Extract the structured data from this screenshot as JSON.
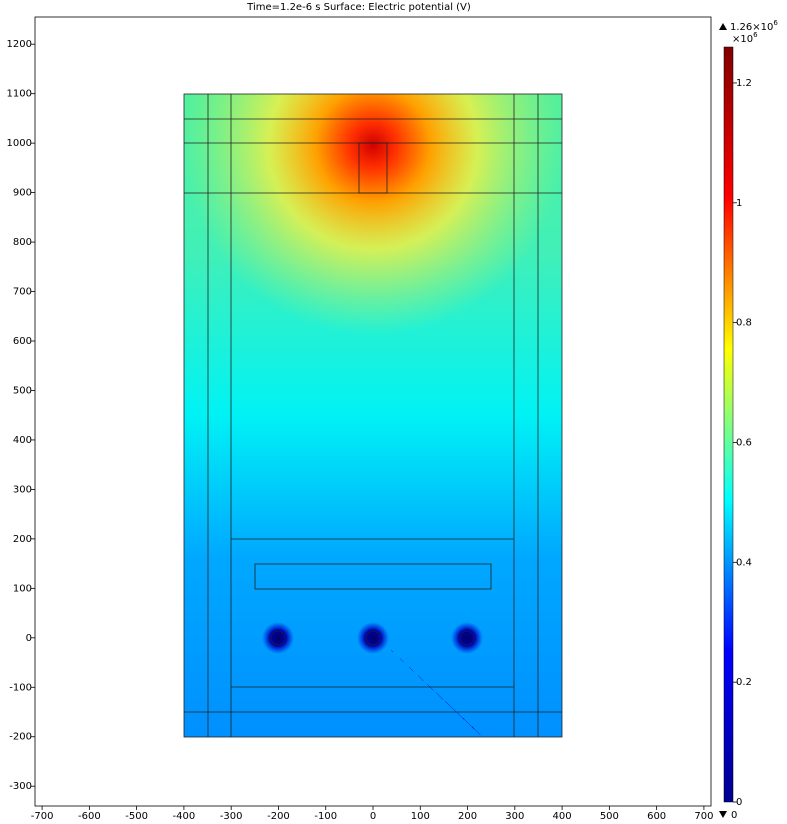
{
  "chart_data": {
    "type": "surface",
    "title": "Time=1.2e-6 s   Surface: Electric potential (V)",
    "xlim": [
      -715,
      715
    ],
    "xticks": [
      -700,
      -600,
      -500,
      -400,
      -300,
      -200,
      -100,
      0,
      100,
      200,
      300,
      400,
      500,
      600,
      700
    ],
    "ylim": [
      -340,
      1255
    ],
    "yticks": [
      -300,
      -200,
      -100,
      0,
      100,
      200,
      300,
      400,
      500,
      600,
      700,
      800,
      900,
      1000,
      1100,
      1200
    ],
    "colorbar": {
      "lim": [
        0,
        1.26
      ],
      "ticks": [
        0,
        0.2,
        0.4,
        0.6,
        0.8,
        1,
        1.2
      ],
      "max_label": "1.26×10",
      "max_exp": "6",
      "multiplier": "×10",
      "multiplier_exp": "6",
      "min_label": "0",
      "colors": [
        "#00008f",
        "#0000ff",
        "#00ffff",
        "#ffff00",
        "#ff0000",
        "#800000"
      ]
    }
  }
}
